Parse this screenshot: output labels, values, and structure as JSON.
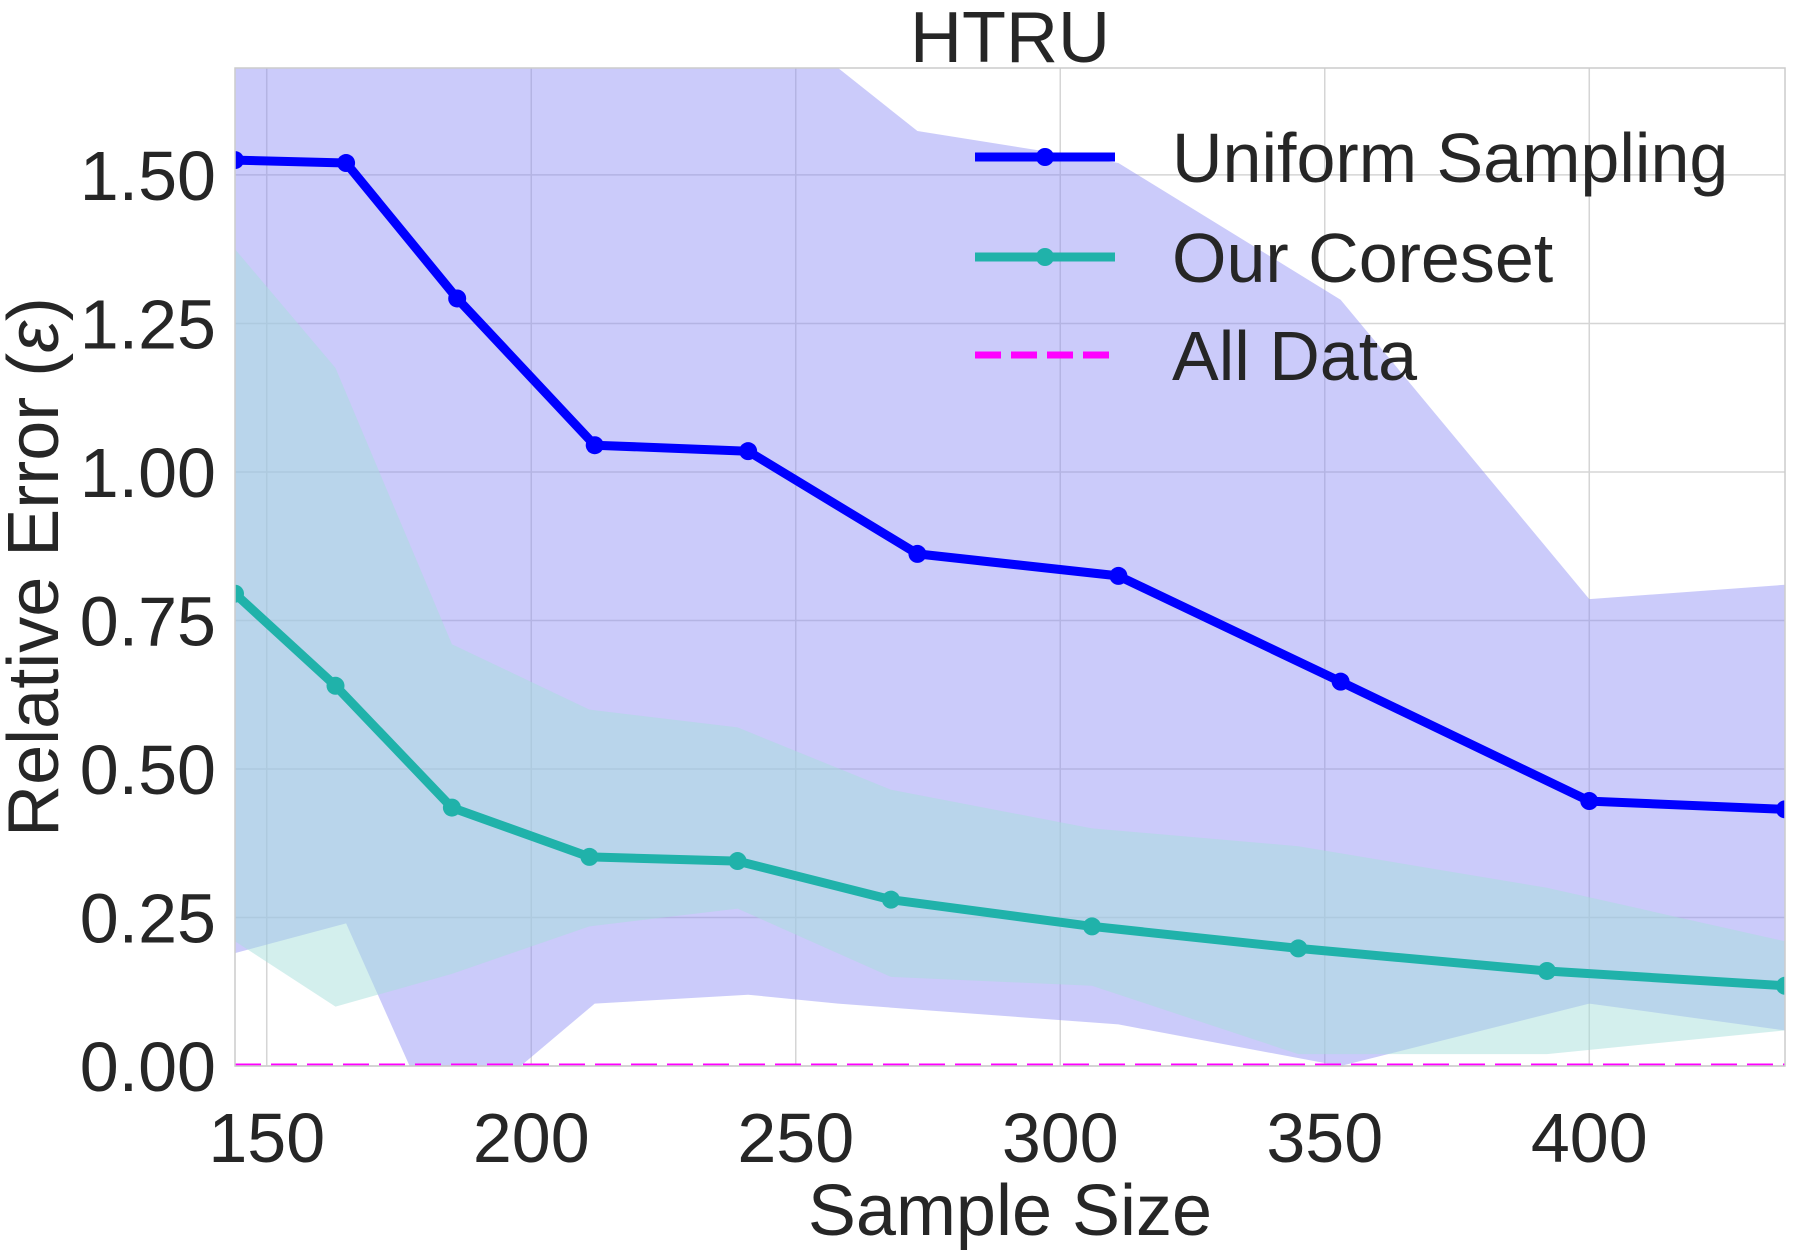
{
  "chart_data": {
    "type": "line",
    "title": "HTRU",
    "xlabel": "Sample Size",
    "ylabel_prefix": "Relative Error (",
    "ylabel_symbol": "ε",
    "ylabel_suffix": ")",
    "xlim": [
      144,
      437
    ],
    "ylim": [
      0,
      1.68
    ],
    "grid": true,
    "legend_position": "top-right",
    "x_ticks": [
      150,
      200,
      250,
      300,
      350,
      400
    ],
    "x_tick_labels": [
      "150",
      "200",
      "250",
      "300",
      "350",
      "400"
    ],
    "y_ticks": [
      0,
      0.25,
      0.5,
      0.75,
      1.0,
      1.25,
      1.5
    ],
    "y_tick_labels": [
      "0.00",
      "0.25",
      "0.50",
      "0.75",
      "1.00",
      "1.25",
      "1.50"
    ],
    "series": [
      {
        "name": "Uniform Sampling",
        "color": "#0000ff",
        "band_color": "#8c8cf5",
        "style": "solid-marker",
        "x": [
          144,
          165,
          186,
          212,
          241,
          273,
          311,
          353,
          400,
          437
        ],
        "y": [
          1.525,
          1.52,
          1.292,
          1.045,
          1.035,
          0.862,
          0.825,
          0.647,
          0.446,
          0.432
        ],
        "band_x": [
          144,
          165,
          177,
          198,
          212,
          241,
          258,
          273,
          311,
          353,
          400,
          437
        ],
        "band_upper": [
          1.68,
          1.68,
          1.68,
          1.68,
          1.68,
          1.68,
          1.68,
          1.574,
          1.52,
          1.29,
          0.786,
          0.81
        ],
        "band_lower": [
          0.19,
          0.24,
          0.0,
          0.0,
          0.105,
          0.12,
          0.105,
          0.095,
          0.07,
          0.0,
          0.105,
          0.06
        ]
      },
      {
        "name": "Our Coreset",
        "color": "#20b2aa",
        "band_color": "#a8e0dc",
        "style": "solid-marker",
        "x": [
          144,
          163,
          185,
          211,
          239,
          268,
          306,
          345,
          392,
          437
        ],
        "y": [
          0.795,
          0.64,
          0.435,
          0.352,
          0.345,
          0.28,
          0.235,
          0.198,
          0.16,
          0.135
        ],
        "band_x": [
          144,
          163,
          185,
          211,
          239,
          268,
          306,
          345,
          392,
          437
        ],
        "band_upper": [
          1.375,
          1.175,
          0.71,
          0.6,
          0.57,
          0.465,
          0.4,
          0.37,
          0.3,
          0.21
        ],
        "band_lower": [
          0.21,
          0.1,
          0.155,
          0.235,
          0.265,
          0.15,
          0.135,
          0.02,
          0.02,
          0.06
        ]
      },
      {
        "name": "All Data",
        "color": "#ff00ff",
        "style": "dashed",
        "x": [
          144,
          437
        ],
        "y": [
          0.0,
          0.0
        ]
      }
    ]
  }
}
